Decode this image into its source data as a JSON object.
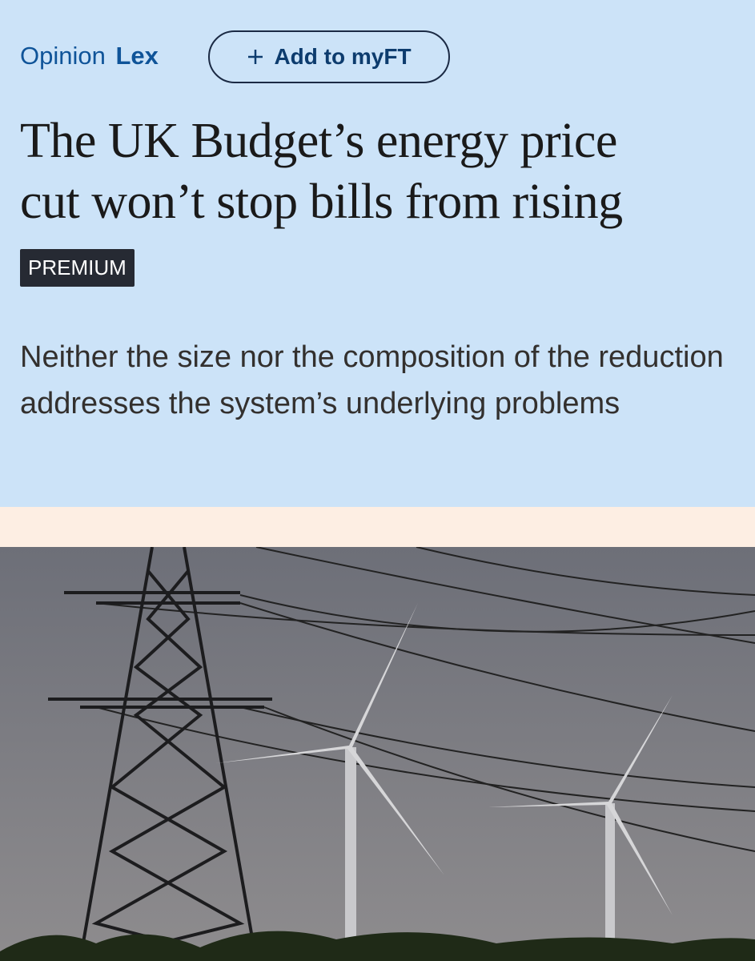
{
  "header": {
    "section": "Opinion",
    "column": "Lex",
    "button": "Add to myFT"
  },
  "article": {
    "title_lines": [
      "The UK Budget’s energy price",
      "cut won’t stop bills from rising"
    ],
    "badge": "PREMIUM",
    "standfirst": "Neither the size nor the composition of the reduction addresses the system’s underlying problems"
  }
}
